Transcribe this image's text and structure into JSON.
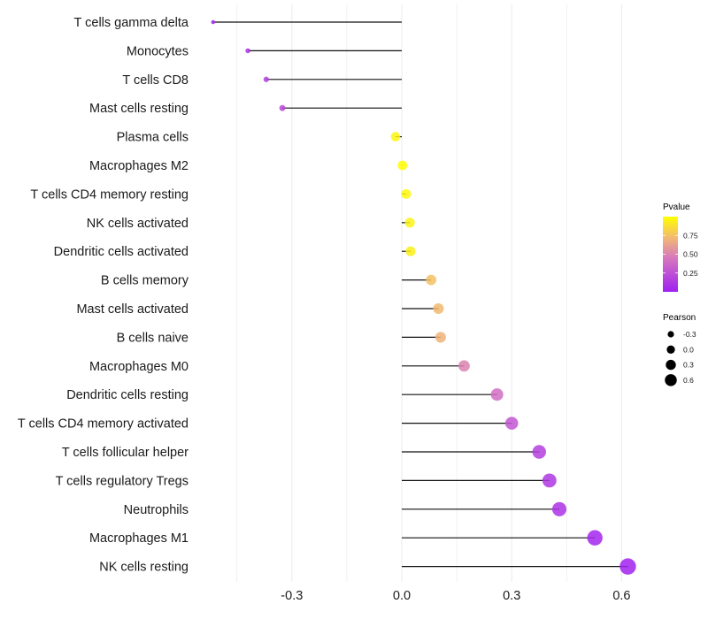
{
  "chart_data": {
    "type": "lollipop",
    "title": "",
    "xlabel": "",
    "ylabel": "",
    "xlim": [
      -0.57,
      0.66
    ],
    "x_ticks": [
      -0.3,
      0.0,
      0.3,
      0.6
    ],
    "x_tick_labels": [
      "-0.3",
      "0.0",
      "0.3",
      "0.6"
    ],
    "grid": true,
    "categories": [
      "T cells gamma delta",
      "Monocytes",
      "T cells CD8",
      "Mast cells resting",
      "Plasma cells",
      "Macrophages M2",
      "T cells CD4 memory resting",
      "NK cells activated",
      "Dendritic cells activated",
      "B cells memory",
      "Mast cells activated",
      "B cells naive",
      "Macrophages M0",
      "Dendritic cells resting",
      "T cells CD4 memory activated",
      "T cells follicular helper",
      "T cells regulatory  Tregs ",
      "Neutrophils",
      "Macrophages M1",
      "NK cells resting"
    ],
    "pearson": [
      -0.515,
      -0.42,
      -0.37,
      -0.326,
      -0.017,
      0.002,
      0.012,
      0.022,
      0.024,
      0.08,
      0.1,
      0.106,
      0.17,
      0.26,
      0.3,
      0.375,
      0.403,
      0.43,
      0.527,
      0.617
    ],
    "pvalue": [
      0.02,
      0.1,
      0.15,
      0.2,
      0.96,
      0.99,
      0.97,
      0.95,
      0.94,
      0.75,
      0.72,
      0.7,
      0.5,
      0.4,
      0.28,
      0.16,
      0.12,
      0.09,
      0.03,
      0.01
    ],
    "legend_color": {
      "title": "Pvalue",
      "ticks": [
        0.25,
        0.5,
        0.75
      ],
      "tick_labels": [
        "0.25",
        "0.50",
        "0.75"
      ],
      "range": [
        0.0,
        1.0
      ],
      "low_color": "#A020F0",
      "high_color": "#FFFF00",
      "placement": "right"
    },
    "legend_size": {
      "title": "Pearson",
      "values": [
        -0.3,
        0.0,
        0.3,
        0.6
      ],
      "labels": [
        "-0.3",
        "0.0",
        "0.3",
        "0.6"
      ],
      "placement": "right"
    }
  }
}
